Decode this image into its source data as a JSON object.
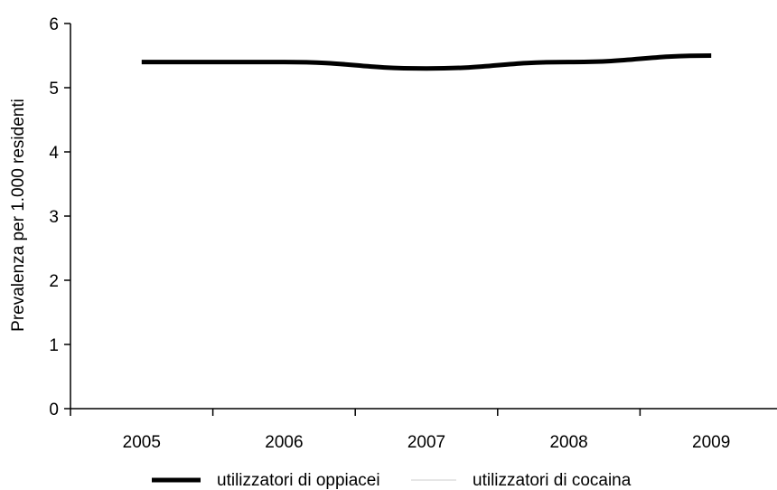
{
  "chart_data": {
    "type": "line",
    "title": "",
    "xlabel": "",
    "ylabel": "Prevalenza per 1.000 residenti",
    "categories": [
      "2005",
      "2006",
      "2007",
      "2008",
      "2009"
    ],
    "ylim": [
      0,
      6
    ],
    "yticks": [
      0,
      1,
      2,
      3,
      4,
      5,
      6
    ],
    "grid": false,
    "legend_position": "bottom",
    "series": [
      {
        "name": "utilizzatori di oppiacei",
        "values": [
          5.4,
          5.4,
          5.3,
          5.4,
          5.5
        ],
        "color": "#000000"
      },
      {
        "name": "utilizzatori di cocaina",
        "values": [
          null,
          null,
          null,
          null,
          null
        ],
        "color": "#cccccc"
      }
    ]
  }
}
